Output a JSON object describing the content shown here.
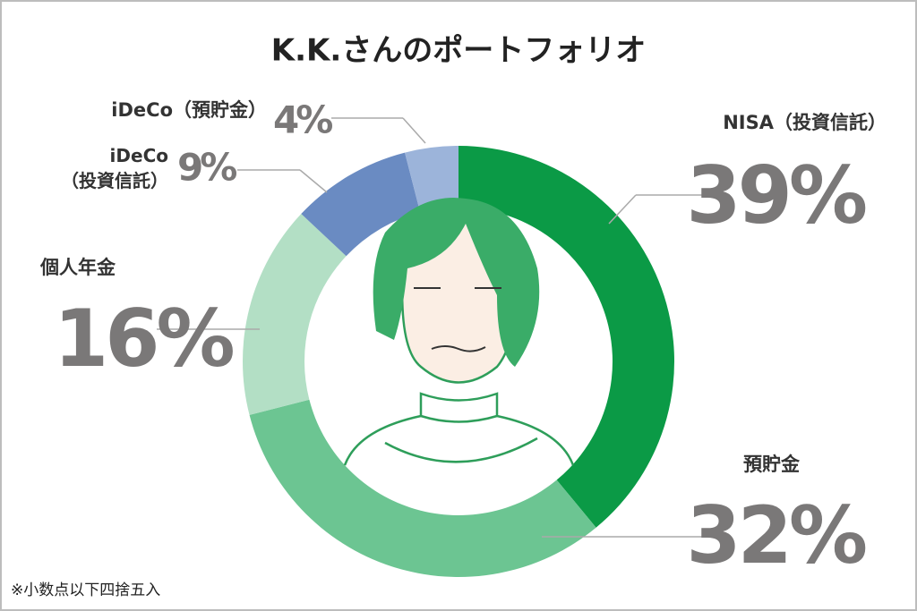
{
  "chart_data": {
    "type": "donut",
    "title": "K.K.さんのポートフォリオ",
    "categories": [
      "NISA（投資信託）",
      "預貯金",
      "個人年金",
      "iDeCo\n（投資信託）",
      "iDeCo（預貯金）"
    ],
    "values": [
      39,
      32,
      16,
      9,
      4
    ],
    "value_labels": [
      "39%",
      "32%",
      "16%",
      "9%",
      "4%"
    ],
    "colors": [
      "#0b9a46",
      "#6cc592",
      "#b3dfc5",
      "#6a8bc2",
      "#9cb4da"
    ],
    "note": "※小数点以下四捨五入"
  }
}
